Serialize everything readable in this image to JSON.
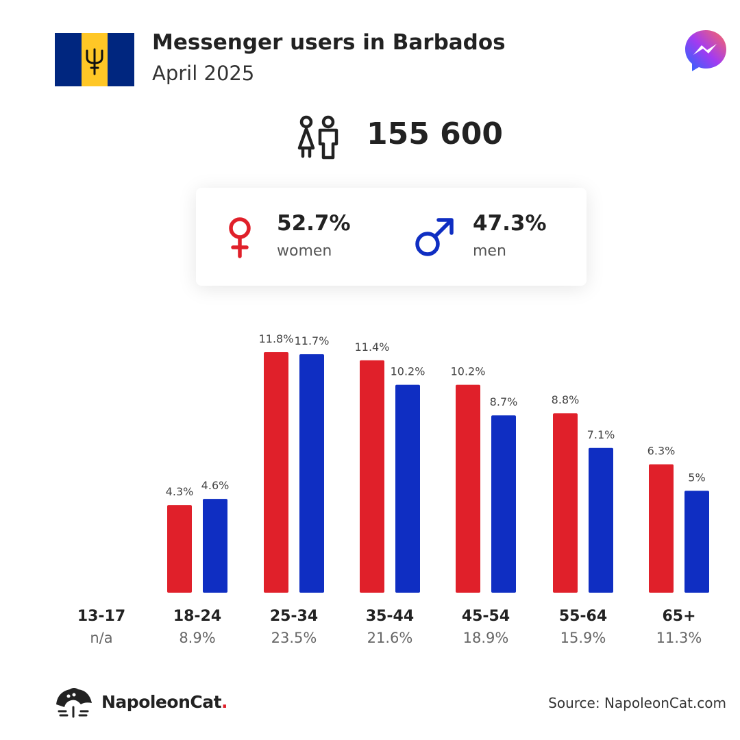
{
  "header": {
    "title": "Messenger users in Barbados",
    "subtitle": "April 2025"
  },
  "total": "155 600",
  "gender": {
    "women": {
      "percent": "52.7%",
      "label": "women"
    },
    "men": {
      "percent": "47.3%",
      "label": "men"
    }
  },
  "colors": {
    "women": "#e0202a",
    "men": "#0f2ec2"
  },
  "icons": [
    "barbados-flag-icon",
    "messenger-logo-icon",
    "people-icon",
    "female-symbol-icon",
    "male-symbol-icon",
    "napoleoncat-logo-icon"
  ],
  "chart_data": {
    "type": "bar",
    "categories": [
      "13-17",
      "18-24",
      "25-34",
      "35-44",
      "45-54",
      "55-64",
      "65+"
    ],
    "category_totals": [
      "n/a",
      "8.9%",
      "23.5%",
      "21.6%",
      "18.9%",
      "15.9%",
      "11.3%"
    ],
    "series": [
      {
        "name": "women",
        "values": [
          null,
          4.3,
          11.8,
          11.4,
          10.2,
          8.8,
          6.3
        ],
        "labels": [
          "",
          "4.3%",
          "11.8%",
          "11.4%",
          "10.2%",
          "8.8%",
          "6.3%"
        ]
      },
      {
        "name": "men",
        "values": [
          null,
          4.6,
          11.7,
          10.2,
          8.7,
          7.1,
          5.0
        ],
        "labels": [
          "",
          "4.6%",
          "11.7%",
          "10.2%",
          "8.7%",
          "7.1%",
          "5%"
        ]
      }
    ],
    "ylim": [
      0,
      11.8
    ]
  },
  "footer": {
    "brand": "NapoleonCat",
    "brand_dot": ".",
    "source": "Source: NapoleonCat.com"
  }
}
